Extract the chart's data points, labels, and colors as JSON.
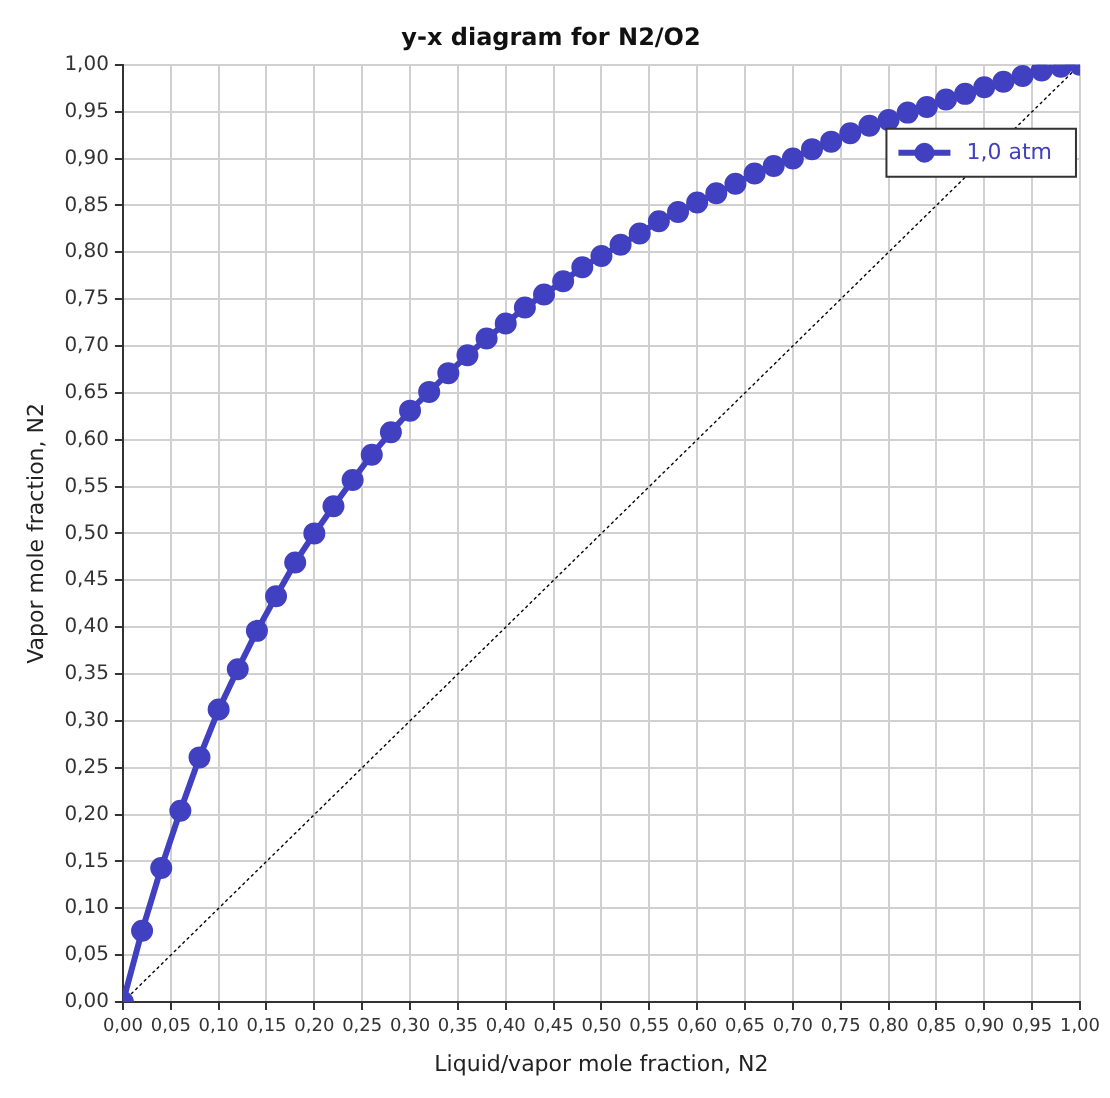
{
  "chart_data": {
    "type": "line",
    "title": "y-x diagram for N2/O2",
    "xlabel": "Liquid/vapor mole fraction, N2",
    "ylabel": "Vapor mole fraction, N2",
    "xlim": [
      0,
      1
    ],
    "ylim": [
      0,
      1
    ],
    "xticks": [
      {
        "value": 0,
        "label": "0,00"
      },
      {
        "value": 0.05,
        "label": "0,05"
      },
      {
        "value": 0.1,
        "label": "0,10"
      },
      {
        "value": 0.15,
        "label": "0,15"
      },
      {
        "value": 0.2,
        "label": "0,20"
      },
      {
        "value": 0.25,
        "label": "0,25"
      },
      {
        "value": 0.3,
        "label": "0,30"
      },
      {
        "value": 0.35,
        "label": "0,35"
      },
      {
        "value": 0.4,
        "label": "0,40"
      },
      {
        "value": 0.45,
        "label": "0,45"
      },
      {
        "value": 0.5,
        "label": "0,50"
      },
      {
        "value": 0.55,
        "label": "0,55"
      },
      {
        "value": 0.6,
        "label": "0,60"
      },
      {
        "value": 0.65,
        "label": "0,65"
      },
      {
        "value": 0.7,
        "label": "0,70"
      },
      {
        "value": 0.75,
        "label": "0,75"
      },
      {
        "value": 0.8,
        "label": "0,80"
      },
      {
        "value": 0.85,
        "label": "0,85"
      },
      {
        "value": 0.9,
        "label": "0,90"
      },
      {
        "value": 0.95,
        "label": "0,95"
      },
      {
        "value": 1,
        "label": "1,00"
      }
    ],
    "yticks": [
      {
        "value": 0,
        "label": "0,00"
      },
      {
        "value": 0.05,
        "label": "0,05"
      },
      {
        "value": 0.1,
        "label": "0,10"
      },
      {
        "value": 0.15,
        "label": "0,15"
      },
      {
        "value": 0.2,
        "label": "0,20"
      },
      {
        "value": 0.25,
        "label": "0,25"
      },
      {
        "value": 0.3,
        "label": "0,30"
      },
      {
        "value": 0.35,
        "label": "0,35"
      },
      {
        "value": 0.4,
        "label": "0,40"
      },
      {
        "value": 0.45,
        "label": "0,45"
      },
      {
        "value": 0.5,
        "label": "0,50"
      },
      {
        "value": 0.55,
        "label": "0,55"
      },
      {
        "value": 0.6,
        "label": "0,60"
      },
      {
        "value": 0.65,
        "label": "0,65"
      },
      {
        "value": 0.7,
        "label": "0,70"
      },
      {
        "value": 0.75,
        "label": "0,75"
      },
      {
        "value": 0.8,
        "label": "0,80"
      },
      {
        "value": 0.85,
        "label": "0,85"
      },
      {
        "value": 0.9,
        "label": "0,90"
      },
      {
        "value": 0.95,
        "label": "0,95"
      },
      {
        "value": 1,
        "label": "1,00"
      }
    ],
    "grid": true,
    "legend": "top right",
    "series": [
      {
        "name": "1,0 atm",
        "color": "#4040c0",
        "marker": "circle",
        "line_style": "solid",
        "x": [
          0,
          0.02,
          0.04,
          0.06,
          0.08,
          0.1,
          0.12,
          0.14,
          0.16,
          0.18,
          0.2,
          0.22,
          0.24,
          0.26,
          0.28,
          0.3,
          0.32,
          0.34,
          0.36,
          0.38,
          0.4,
          0.42,
          0.44,
          0.46,
          0.48,
          0.5,
          0.52,
          0.54,
          0.56,
          0.58,
          0.6,
          0.62,
          0.64,
          0.66,
          0.68,
          0.7,
          0.72,
          0.74,
          0.76,
          0.78,
          0.8,
          0.82,
          0.84,
          0.86,
          0.88,
          0.9,
          0.92,
          0.94,
          0.96,
          0.98,
          1
        ],
        "values": [
          0,
          0.076,
          0.143,
          0.204,
          0.261,
          0.312,
          0.355,
          0.396,
          0.433,
          0.469,
          0.5,
          0.529,
          0.557,
          0.584,
          0.608,
          0.631,
          0.651,
          0.671,
          0.69,
          0.708,
          0.724,
          0.741,
          0.755,
          0.769,
          0.784,
          0.796,
          0.808,
          0.82,
          0.833,
          0.843,
          0.853,
          0.863,
          0.873,
          0.884,
          0.892,
          0.9,
          0.91,
          0.918,
          0.927,
          0.935,
          0.941,
          0.949,
          0.955,
          0.963,
          0.969,
          0.976,
          0.982,
          0.988,
          0.994,
          0.998,
          1
        ]
      },
      {
        "color": "#000000",
        "marker": "none",
        "line_style": "dotted",
        "x": [
          0,
          1
        ],
        "values": [
          0,
          1
        ]
      }
    ]
  }
}
